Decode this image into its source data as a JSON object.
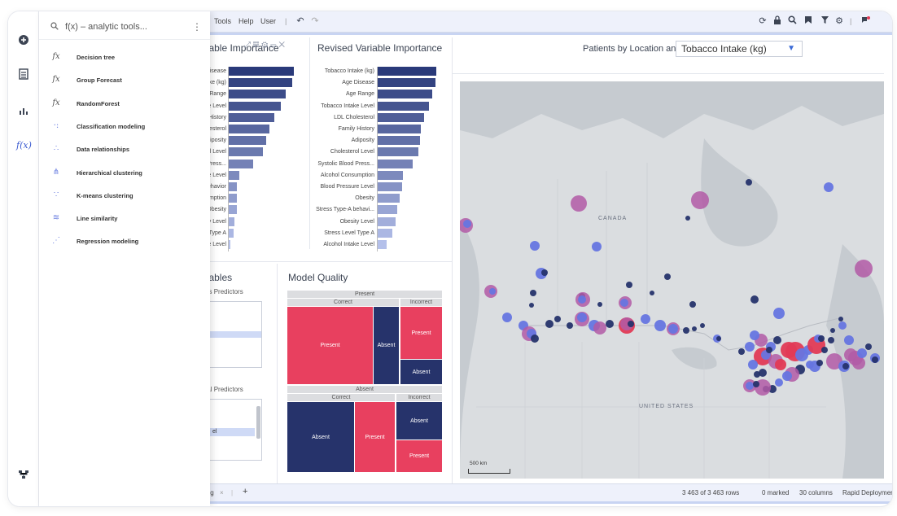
{
  "menubar": {
    "items": [
      "Tools",
      "Help",
      "User"
    ]
  },
  "importance_left": {
    "title": "Variable Importance",
    "labels": [
      "Age Disease",
      "Tobacco Intake (kg)",
      "Age Range",
      "Tobacco Intake Level",
      "Family History",
      "LDL Cholesterol",
      "Adiposity",
      "Cholesterol Level",
      "Systolic Blood Press...",
      "Blood Pressure Level",
      "Stress Type-A behavior",
      "Alcohol Consumption",
      "Obesity",
      "Obesity Level",
      "Stress Level Type A",
      "Alcohol Intake Level"
    ],
    "values": [
      100,
      98,
      88,
      80,
      70,
      63,
      57,
      53,
      38,
      16,
      13,
      12,
      12,
      9,
      7,
      3
    ]
  },
  "importance_right": {
    "title": "Revised Variable Importance",
    "labels": [
      "Tobacco Intake (kg)",
      "Age Disease",
      "Age Range",
      "Tobacco Intake Level",
      "LDL Cholesterol",
      "Family History",
      "Adiposity",
      "Cholesterol Level",
      "Systolic Blood Press...",
      "Alcohol Consumption",
      "Blood Pressure Level",
      "Obesity",
      "Stress Type-A behavi...",
      "Obesity Level",
      "Stress Level Type A",
      "Alcohol Intake Level"
    ],
    "values": [
      100,
      99,
      93,
      87,
      79,
      74,
      72,
      70,
      60,
      43,
      42,
      38,
      33,
      30,
      25,
      15
    ]
  },
  "variables": {
    "title": "Variables",
    "continuous_label": "Continuous Predictors",
    "categorical_label": "Categorical Predictors",
    "categorical_selected": "el"
  },
  "model_quality": {
    "title": "Model Quality",
    "present_header": "Present",
    "absent_header": "Absent",
    "correct": "Correct",
    "incorrect": "Incorrect",
    "present_correct_present": "Present",
    "present_correct_absent": "Absent",
    "present_incorrect_present": "Present",
    "present_incorrect_absent": "Absent",
    "absent_correct_absent": "Absent",
    "absent_correct_present": "Present",
    "absent_incorrect_absent": "Absent",
    "absent_incorrect_present": "Present"
  },
  "map": {
    "title_prefix": "Patients by Location and",
    "selected_variable": "Tobacco Intake (kg)",
    "label_canada": "CANADA",
    "label_us": "UNITED STATES",
    "scale": "500 km"
  },
  "statusbar": {
    "tab": "ing",
    "rows": "3 463 of 3 463 rows",
    "marked": "0 marked",
    "columns": "30 columns",
    "deployment": "Rapid Deployment"
  },
  "flyout": {
    "search_placeholder": "f(x) – analytic tools...",
    "items": [
      {
        "icon": "fx",
        "label": "Decision tree"
      },
      {
        "icon": "fx",
        "label": "Group Forecast"
      },
      {
        "icon": "fx",
        "label": "RandomForest"
      },
      {
        "icon": "·:",
        "label": "Classification modeling"
      },
      {
        "icon": "∴",
        "label": "Data relationships"
      },
      {
        "icon": "⋔",
        "label": "Hierarchical clustering"
      },
      {
        "icon": "∵",
        "label": "K-means clustering"
      },
      {
        "icon": "≋",
        "label": "Line similarity"
      },
      {
        "icon": "⋰",
        "label": "Regression modeling"
      }
    ]
  },
  "colors": {
    "bar_dark": "#2a3a7a",
    "bar_light": "#b4c0ea",
    "present": "#e8405f",
    "absent": "#26336b",
    "dot_dark": "#26336b",
    "dot_blue": "#6675e0",
    "dot_purple": "#b25aa6",
    "dot_red": "#e23a55"
  }
}
